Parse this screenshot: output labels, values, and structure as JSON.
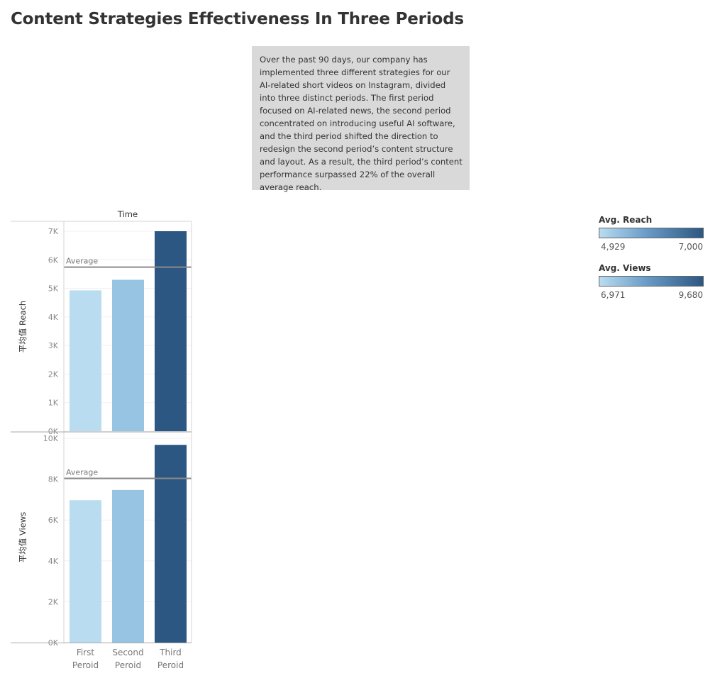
{
  "title": "Content Strategies Effectiveness In Three Periods",
  "note": "Over the past 90 days, our company has implemented three different strategies for our AI-related short videos on Instagram, divided into three distinct periods. The first period focused on AI-related news, the second period concentrated on introducing useful AI software, and the third period shifted the direction to redesign the second period’s content structure and layout. As a result, the third period’s content performance surpassed 22% of the overall average reach.",
  "legends": [
    {
      "title": "Avg. Reach",
      "min": "4,929",
      "max": "7,000"
    },
    {
      "title": "Avg. Views",
      "min": "6,971",
      "max": "9,680"
    }
  ],
  "colors": {
    "first": "#b9dcf0",
    "second": "#98c4e3",
    "third": "#2c5782",
    "average_line": "#8a8a8a"
  },
  "chart_data": {
    "type": "bar",
    "column_header": "Time",
    "categories": [
      "First Peroid",
      "Second Peroid",
      "Third Peroid"
    ],
    "category_lines": [
      [
        "First",
        "Peroid"
      ],
      [
        "Second",
        "Peroid"
      ],
      [
        "Third",
        "Peroid"
      ]
    ],
    "panels": [
      {
        "ylabel": "平均值 Reach",
        "values": [
          4929,
          5300,
          7000
        ],
        "average": 5743,
        "average_label": "Average",
        "ylim": [
          0,
          7000
        ],
        "ticks": [
          0,
          1000,
          2000,
          3000,
          4000,
          5000,
          6000,
          7000
        ],
        "tick_labels": [
          "0K",
          "1K",
          "2K",
          "3K",
          "4K",
          "5K",
          "6K",
          "7K"
        ]
      },
      {
        "ylabel": "平均值 Views",
        "values": [
          6971,
          7470,
          9680
        ],
        "average": 8040,
        "average_label": "Average",
        "ylim": [
          0,
          10000
        ],
        "ticks": [
          0,
          2000,
          4000,
          6000,
          8000,
          10000
        ],
        "tick_labels": [
          "0K",
          "2K",
          "4K",
          "6K",
          "8K",
          "10K"
        ]
      }
    ]
  }
}
